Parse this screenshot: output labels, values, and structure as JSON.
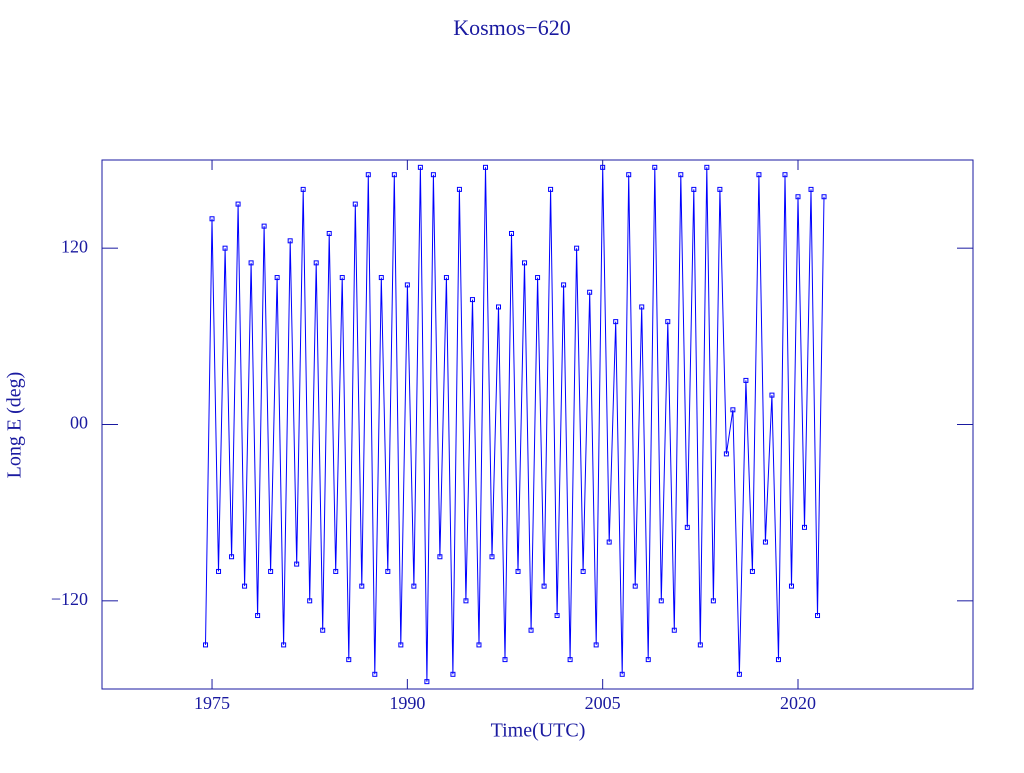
{
  "chart_data": {
    "type": "line",
    "title": "Kosmos−620",
    "x_label": "Time(UTC)",
    "y_label": "Long E (deg)",
    "xlim": [
      1966.55,
      2033.44
    ],
    "ylim": [
      -180,
      180
    ],
    "xticks": [
      1975,
      1990,
      2005,
      2020
    ],
    "yticks": [
      {
        "value": -120,
        "label": "−120"
      },
      {
        "value": 0,
        "label": "00"
      },
      120
    ],
    "x": [
      1974.5,
      1975,
      1975.5,
      1976,
      1976.5,
      1977,
      1977.5,
      1978,
      1978.5,
      1979,
      1979.5,
      1980,
      1980.5,
      1981,
      1981.5,
      1982,
      1982.5,
      1983,
      1983.5,
      1984,
      1984.5,
      1985,
      1985.5,
      1986,
      1986.5,
      1987,
      1987.5,
      1988,
      1988.5,
      1989,
      1989.5,
      1990,
      1990.5,
      1991,
      1991.5,
      1992,
      1992.5,
      1993,
      1993.5,
      1994,
      1994.5,
      1995,
      1995.5,
      1996,
      1996.5,
      1997,
      1997.5,
      1998,
      1998.5,
      1999,
      1999.5,
      2000,
      2000.5,
      2001,
      2001.5,
      2002,
      2002.5,
      2003,
      2003.5,
      2004,
      2004.5,
      2005,
      2005.5,
      2006,
      2006.5,
      2007,
      2007.5,
      2008,
      2008.5,
      2009,
      2009.5,
      2010,
      2010.5,
      2011,
      2011.5,
      2012,
      2012.5,
      2013,
      2013.5,
      2014,
      2014.5,
      2015,
      2015.5,
      2016,
      2016.5,
      2017,
      2017.5,
      2018,
      2018.5,
      2019,
      2019.5,
      2020,
      2020.5,
      2021,
      2021.5,
      2022
    ],
    "series": [
      {
        "color": "#0000ff",
        "values": [
          -150,
          140,
          -100,
          120,
          -90,
          150,
          -110,
          110,
          -130,
          135,
          -100,
          100,
          -150,
          125,
          -95,
          160,
          -120,
          110,
          -140,
          130,
          -100,
          100,
          -160,
          150,
          -110,
          170,
          -170,
          100,
          -100,
          170,
          -150,
          95,
          -110,
          175,
          -175,
          170,
          -90,
          100,
          -170,
          160,
          -120,
          85,
          -150,
          175,
          -90,
          80,
          -160,
          130,
          -100,
          110,
          -140,
          100,
          -110,
          160,
          -130,
          95,
          -160,
          120,
          -100,
          90,
          -150,
          175,
          -80,
          70,
          -170,
          170,
          -110,
          80,
          -160,
          175,
          -120,
          70,
          -140,
          170,
          -70,
          160,
          -150,
          175,
          -120,
          160,
          -20,
          10,
          -170,
          30,
          -100,
          170,
          -80,
          20,
          -160,
          170,
          -110,
          155,
          -70,
          160,
          -130,
          155
        ]
      }
    ]
  }
}
